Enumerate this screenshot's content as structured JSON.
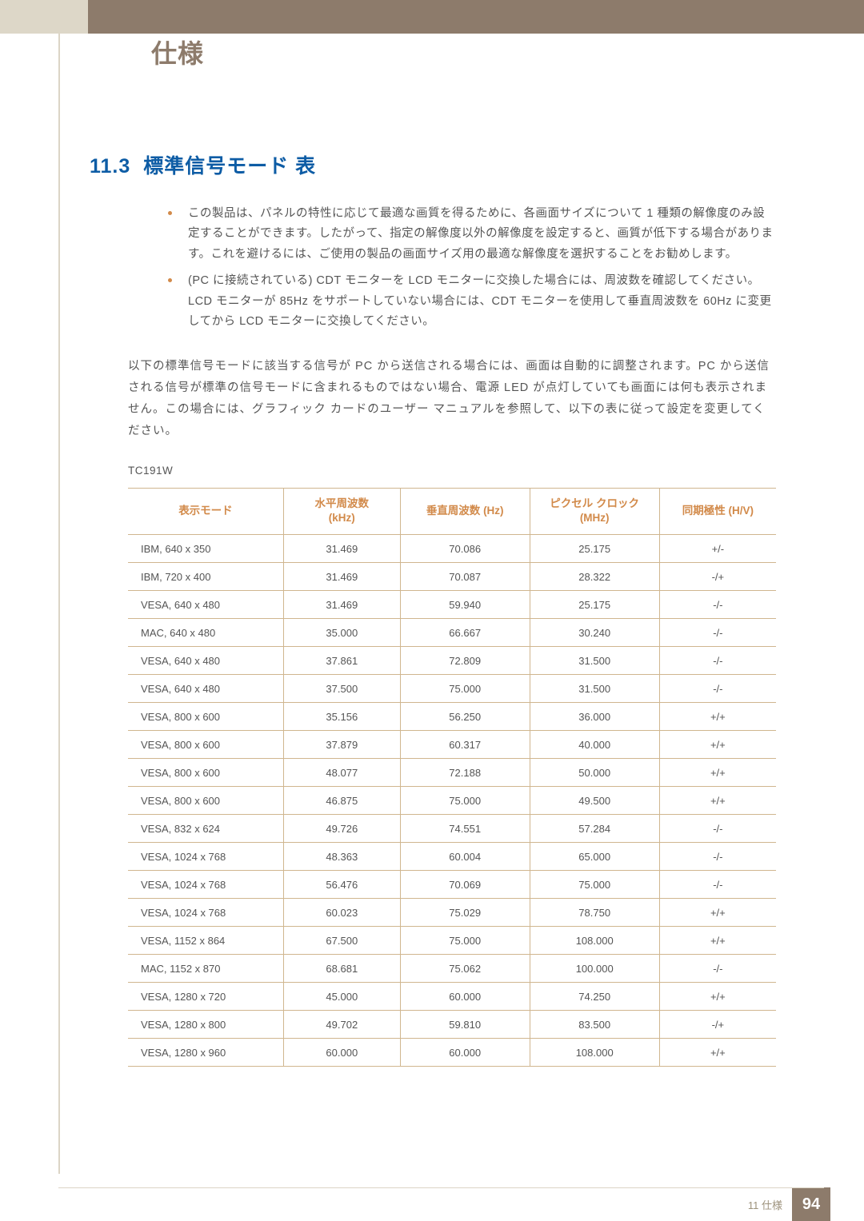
{
  "page_title": "仕様",
  "section_number": "11.3",
  "section_title": "標準信号モード 表",
  "bullets": [
    "この製品は、パネルの特性に応じて最適な画質を得るために、各画面サイズについて 1 種類の解像度のみ設定することができます。したがって、指定の解像度以外の解像度を設定すると、画質が低下する場合があります。これを避けるには、ご使用の製品の画面サイズ用の最適な解像度を選択することをお勧めします。",
    "(PC に接続されている) CDT モニターを LCD モニターに交換した場合には、周波数を確認してください。LCD モニターが 85Hz をサポートしていない場合には、CDT モニターを使用して垂直周波数を 60Hz に変更してから LCD モニターに交換してください。"
  ],
  "body_paragraph": "以下の標準信号モードに該当する信号が PC から送信される場合には、画面は自動的に調整されます。PC から送信される信号が標準の信号モードに含まれるものではない場合、電源 LED が点灯していても画面には何も表示されません。この場合には、グラフィック カードのユーザー マニュアルを参照して、以下の表に従って設定を変更してください。",
  "model": "TC191W",
  "table": {
    "columns": [
      "表示モード",
      "水平周波数 (kHz)",
      "垂直周波数 (Hz)",
      "ピクセル クロック (MHz)",
      "同期極性 (H/V)"
    ],
    "rows": [
      [
        "IBM, 640 x 350",
        "31.469",
        "70.086",
        "25.175",
        "+/-"
      ],
      [
        "IBM, 720 x 400",
        "31.469",
        "70.087",
        "28.322",
        "-/+"
      ],
      [
        "VESA, 640 x 480",
        "31.469",
        "59.940",
        "25.175",
        "-/-"
      ],
      [
        "MAC, 640 x 480",
        "35.000",
        "66.667",
        "30.240",
        "-/-"
      ],
      [
        "VESA, 640 x 480",
        "37.861",
        "72.809",
        "31.500",
        "-/-"
      ],
      [
        "VESA, 640 x 480",
        "37.500",
        "75.000",
        "31.500",
        "-/-"
      ],
      [
        "VESA, 800 x 600",
        "35.156",
        "56.250",
        "36.000",
        "+/+"
      ],
      [
        "VESA, 800 x 600",
        "37.879",
        "60.317",
        "40.000",
        "+/+"
      ],
      [
        "VESA, 800 x 600",
        "48.077",
        "72.188",
        "50.000",
        "+/+"
      ],
      [
        "VESA, 800 x 600",
        "46.875",
        "75.000",
        "49.500",
        "+/+"
      ],
      [
        "VESA, 832 x 624",
        "49.726",
        "74.551",
        "57.284",
        "-/-"
      ],
      [
        "VESA, 1024 x 768",
        "48.363",
        "60.004",
        "65.000",
        "-/-"
      ],
      [
        "VESA, 1024 x 768",
        "56.476",
        "70.069",
        "75.000",
        "-/-"
      ],
      [
        "VESA, 1024 x 768",
        "60.023",
        "75.029",
        "78.750",
        "+/+"
      ],
      [
        "VESA, 1152 x 864",
        "67.500",
        "75.000",
        "108.000",
        "+/+"
      ],
      [
        "MAC, 1152 x 870",
        "68.681",
        "75.062",
        "100.000",
        "-/-"
      ],
      [
        "VESA, 1280 x 720",
        "45.000",
        "60.000",
        "74.250",
        "+/+"
      ],
      [
        "VESA, 1280 x 800",
        "49.702",
        "59.810",
        "83.500",
        "-/+"
      ],
      [
        "VESA, 1280 x 960",
        "60.000",
        "60.000",
        "108.000",
        "+/+"
      ]
    ],
    "header_text_color": "#d28a4a",
    "border_color": "#d0b68f",
    "cell_text_color": "#555555"
  },
  "footer": {
    "chapter": "11 仕様",
    "page_number": "94"
  },
  "colors": {
    "brown_bar": "#8d7b6b",
    "tan_bar": "#ddd7c8",
    "heading_blue": "#0d5ca5",
    "bullet_orange": "#d28a4a",
    "left_rule": "#dcd5c6"
  }
}
